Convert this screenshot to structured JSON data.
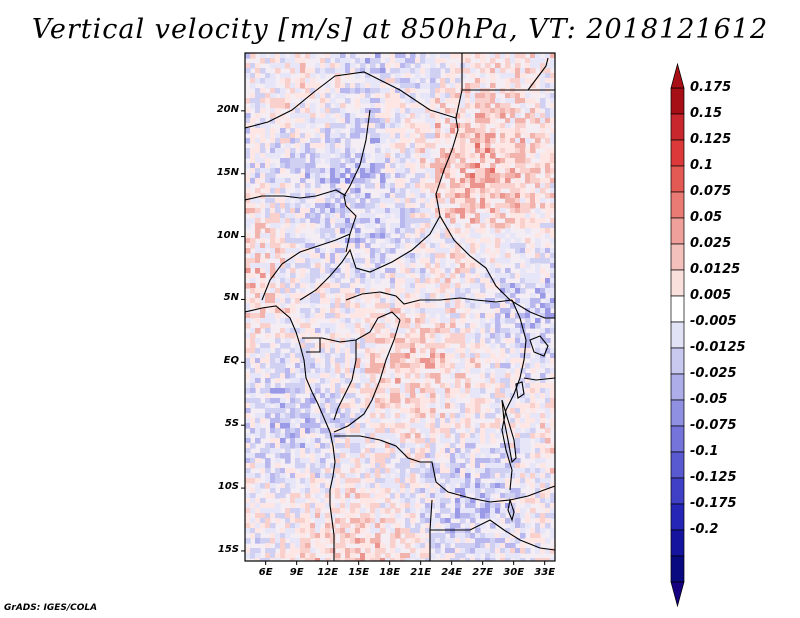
{
  "title": "Vertical velocity [m/s] at 850hPa, VT: 2018121612",
  "footer": "GrADS: IGES/COLA",
  "map": {
    "region": "Central Africa",
    "lat_ticks": [
      "20N",
      "15N",
      "10N",
      "5N",
      "EQ",
      "5S",
      "10S",
      "15S"
    ],
    "lat_values": [
      20,
      15,
      10,
      5,
      0,
      -5,
      -10,
      -15
    ],
    "lon_ticks": [
      "6E",
      "9E",
      "12E",
      "15E",
      "18E",
      "21E",
      "24E",
      "27E",
      "30E",
      "33E"
    ],
    "lon_values": [
      6,
      9,
      12,
      15,
      18,
      21,
      24,
      27,
      30,
      33
    ],
    "lon_range": [
      4,
      34
    ],
    "lat_range": [
      -15.8,
      24.6
    ],
    "frame_color": "#000000",
    "border_color": "#000000"
  },
  "colorbar": {
    "levels": [
      "0.175",
      "0.15",
      "0.125",
      "0.1",
      "0.075",
      "0.05",
      "0.025",
      "0.0125",
      "0.005",
      "-0.005",
      "-0.0125",
      "-0.025",
      "-0.05",
      "-0.075",
      "-0.1",
      "-0.125",
      "-0.175",
      "-0.2"
    ],
    "colors": [
      "#a50f15",
      "#c8272d",
      "#dc3a3a",
      "#e35a55",
      "#e97b74",
      "#efa09a",
      "#f4c0bb",
      "#fae0dd",
      "#ffffff",
      "#e2e2f6",
      "#c9c9f0",
      "#adadea",
      "#9090e2",
      "#7474da",
      "#5a5ad0",
      "#4040c6",
      "#2626b6",
      "#14149e",
      "#0a0a80"
    ],
    "over_color": "#a50f15",
    "under_color": "#150080"
  }
}
